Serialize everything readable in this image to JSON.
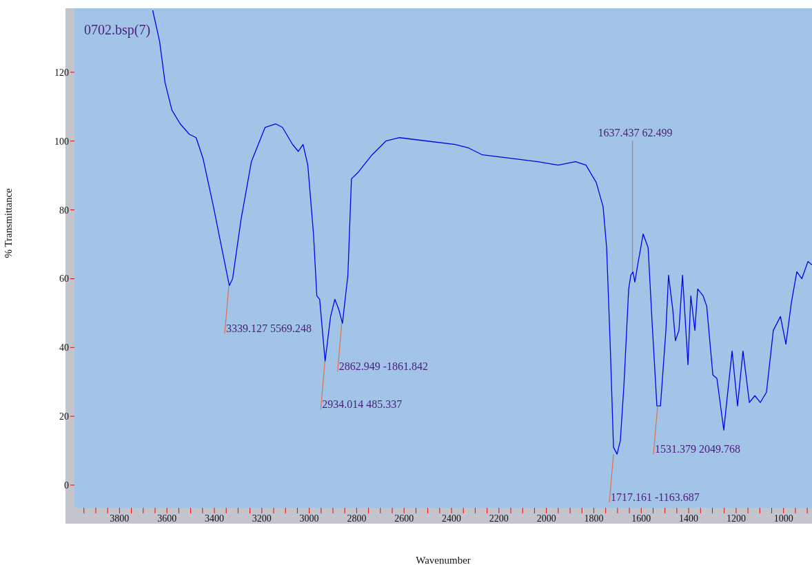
{
  "chart_data": {
    "type": "line",
    "xlabel": "Wavenumber",
    "ylabel": "% Transmittance",
    "annotations": [
      "0702.bsp(7)",
      {
        "text": "3339.127  5569.248",
        "x": 3339,
        "y": 58
      },
      {
        "text": "2934.014  485.337",
        "x": 2934,
        "y": 36
      },
      {
        "text": "2862.949  -1861.842",
        "x": 2863,
        "y": 47
      },
      {
        "text": "1637.437  62.499",
        "x": 1637,
        "y": 62
      },
      {
        "text": "1717.161  -1163.687",
        "x": 1717,
        "y": 9
      },
      {
        "text": "1531.379  2049.768",
        "x": 1531,
        "y": 23
      }
    ],
    "series": [
      {
        "color": "#0000ee",
        "x": [
          3660,
          3631,
          3608,
          3579,
          3544,
          3506,
          3477,
          3448,
          3404,
          3375,
          3337,
          3323,
          3288,
          3244,
          3186,
          3142,
          3113,
          3070,
          3046,
          3026,
          3006,
          2982,
          2968,
          2956,
          2933,
          2910,
          2892,
          2875,
          2860,
          2837,
          2822,
          2793,
          2735,
          2677,
          2619,
          2502,
          2386,
          2328,
          2270,
          2153,
          2037,
          1950,
          1877,
          1833,
          1790,
          1761,
          1746,
          1731,
          1717,
          1702,
          1688,
          1673,
          1653,
          1644,
          1635,
          1627,
          1615,
          1592,
          1571,
          1554,
          1534,
          1519,
          1496,
          1485,
          1467,
          1456,
          1441,
          1426,
          1403,
          1391,
          1374,
          1362,
          1339,
          1324,
          1298,
          1281,
          1252,
          1217,
          1194,
          1171,
          1144,
          1121,
          1098,
          1072,
          1043,
          1013,
          990,
          967,
          944,
          923,
          897,
          880
        ],
        "values": [
          138,
          129,
          117,
          109,
          105,
          102,
          101,
          95,
          81,
          71,
          58,
          60,
          77,
          94,
          104,
          105,
          104,
          99,
          97,
          99,
          93,
          73,
          55,
          54,
          36,
          49,
          54,
          51,
          47,
          61,
          89,
          91,
          96,
          100,
          101,
          100,
          99,
          98,
          96,
          95,
          94,
          93,
          94,
          93,
          88,
          81,
          69,
          41,
          11,
          9,
          13,
          29,
          57,
          61,
          62,
          59,
          64,
          73,
          69,
          47,
          23,
          23,
          45,
          61,
          51,
          42,
          45,
          61,
          35,
          55,
          45,
          57,
          55,
          52,
          32,
          31,
          16,
          39,
          23,
          39,
          24,
          26,
          24,
          27,
          45,
          49,
          41,
          53,
          62,
          60,
          65,
          64
        ]
      }
    ],
    "xlim": [
      3990,
      880
    ],
    "ylim": [
      -6.6,
      138.6
    ],
    "xticks": [
      {
        "value": 3950,
        "label": null
      },
      {
        "value": 3900,
        "label": null
      },
      {
        "value": 3850,
        "label": null
      },
      3800,
      {
        "value": 3750,
        "label": null
      },
      {
        "value": 3700,
        "label": null
      },
      {
        "value": 3650,
        "label": null
      },
      3600,
      {
        "value": 3550,
        "label": null
      },
      {
        "value": 3500,
        "label": null
      },
      {
        "value": 3450,
        "label": null
      },
      3400,
      {
        "value": 3350,
        "label": null
      },
      {
        "value": 3300,
        "label": null
      },
      {
        "value": 3250,
        "label": null
      },
      3200,
      {
        "value": 3150,
        "label": null
      },
      {
        "value": 3100,
        "label": null
      },
      {
        "value": 3050,
        "label": null
      },
      3000,
      {
        "value": 2950,
        "label": null
      },
      {
        "value": 2900,
        "label": null
      },
      {
        "value": 2850,
        "label": null
      },
      2800,
      {
        "value": 2750,
        "label": null
      },
      {
        "value": 2700,
        "label": null
      },
      {
        "value": 2650,
        "label": null
      },
      2600,
      {
        "value": 2550,
        "label": null
      },
      {
        "value": 2500,
        "label": null
      },
      {
        "value": 2450,
        "label": null
      },
      2400,
      {
        "value": 2350,
        "label": null
      },
      {
        "value": 2300,
        "label": null
      },
      {
        "value": 2250,
        "label": null
      },
      2200,
      {
        "value": 2150,
        "label": null
      },
      {
        "value": 2100,
        "label": null
      },
      {
        "value": 2050,
        "label": null
      },
      2000,
      {
        "value": 1950,
        "label": null
      },
      {
        "value": 1900,
        "label": null
      },
      {
        "value": 1850,
        "label": null
      },
      1800,
      {
        "value": 1750,
        "label": null
      },
      {
        "value": 1700,
        "label": null
      },
      {
        "value": 1650,
        "label": null
      },
      1600,
      {
        "value": 1550,
        "label": null
      },
      {
        "value": 1500,
        "label": null
      },
      {
        "value": 1450,
        "label": null
      },
      1400,
      {
        "value": 1350,
        "label": null
      },
      {
        "value": 1300,
        "label": null
      },
      {
        "value": 1250,
        "label": null
      },
      1200,
      {
        "value": 1150,
        "label": null
      },
      {
        "value": 1100,
        "label": null
      },
      {
        "value": 1050,
        "label": null
      },
      1000,
      {
        "value": 950,
        "label": null
      },
      {
        "value": 900,
        "label": null
      }
    ],
    "yticks": [
      0,
      20,
      40,
      60,
      80,
      100,
      120
    ],
    "grid": false,
    "legend": false,
    "marker": "none",
    "line_style": "solid"
  }
}
